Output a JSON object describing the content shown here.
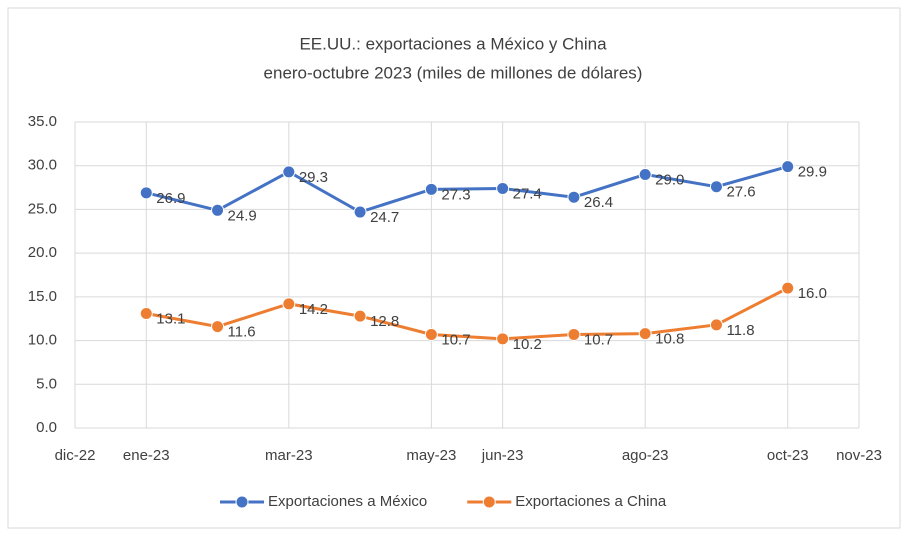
{
  "chart_data": {
    "type": "line",
    "title": "EE.UU.: exportaciones a México y China",
    "subtitle": "enero-octubre 2023 (miles de millones de dólares)",
    "x": [
      "2023-01",
      "2023-02",
      "2023-03",
      "2023-04",
      "2023-05",
      "2023-06",
      "2023-07",
      "2023-08",
      "2023-09",
      "2023-10"
    ],
    "series": [
      {
        "name": "Exportaciones a México",
        "color": "#4472c4",
        "values": [
          26.9,
          24.9,
          29.3,
          24.7,
          27.3,
          27.4,
          26.4,
          29.0,
          27.6,
          29.9
        ],
        "value_labels": [
          "26.9",
          "24.9",
          "29.3",
          "24.7",
          "27.3",
          "27.4",
          "26.4",
          "29.0",
          "27.6",
          "29.9"
        ]
      },
      {
        "name": "Exportaciones a China",
        "color": "#ed7d31",
        "values": [
          13.1,
          11.6,
          14.2,
          12.8,
          10.7,
          10.2,
          10.7,
          10.8,
          11.8,
          16.0
        ],
        "value_labels": [
          "13.1",
          "11.6",
          "14.2",
          "12.8",
          "10.7",
          "10.2",
          "10.7",
          "10.8",
          "11.8",
          "16.0"
        ]
      }
    ],
    "xlim": [
      "2022-12",
      "2023-11"
    ],
    "xticks": [
      {
        "value": "2022-12",
        "label": "dic-22"
      },
      {
        "value": "2023-01",
        "label": "ene-23"
      },
      {
        "value": "2023-03",
        "label": "mar-23"
      },
      {
        "value": "2023-05",
        "label": "may-23"
      },
      {
        "value": "2023-06",
        "label": "jun-23"
      },
      {
        "value": "2023-08",
        "label": "ago-23"
      },
      {
        "value": "2023-10",
        "label": "oct-23"
      },
      {
        "value": "2023-11",
        "label": "nov-23"
      }
    ],
    "ylim": [
      0,
      35
    ],
    "yticks": [
      {
        "value": 0,
        "label": "0.0"
      },
      {
        "value": 5,
        "label": "5.0"
      },
      {
        "value": 10,
        "label": "10.0"
      },
      {
        "value": 15,
        "label": "15.0"
      },
      {
        "value": 20,
        "label": "20.0"
      },
      {
        "value": 25,
        "label": "25.0"
      },
      {
        "value": 30,
        "label": "30.0"
      },
      {
        "value": 35,
        "label": "35.0"
      }
    ],
    "grid": true,
    "legend": "bottom"
  }
}
